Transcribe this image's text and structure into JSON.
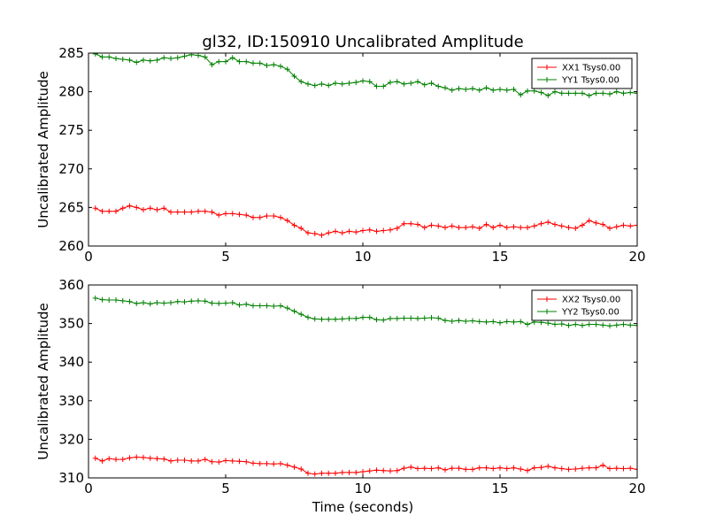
{
  "colors": {
    "red": "#ff0000",
    "green": "#008000",
    "axis": "#000000",
    "background": "#ffffff"
  },
  "chart_data": [
    {
      "type": "line",
      "title": "gl32, ID:150910 Uncalibrated Amplitude",
      "xlabel": "",
      "ylabel": "Uncalibrated Amplitude",
      "xlim": [
        0,
        20
      ],
      "ylim": [
        260,
        285
      ],
      "xticks": [
        0,
        5,
        10,
        15,
        20
      ],
      "yticks": [
        260,
        265,
        270,
        275,
        280,
        285
      ],
      "legend_position": "top-right",
      "series": [
        {
          "name": "XX1 Tsys0.00",
          "color": "#ff0000",
          "x": [
            0.25,
            0.5,
            0.75,
            1.0,
            1.25,
            1.5,
            1.75,
            2.0,
            2.25,
            2.5,
            2.75,
            3.0,
            3.25,
            3.5,
            3.75,
            4.0,
            4.25,
            4.5,
            4.75,
            5.0,
            5.25,
            5.5,
            5.75,
            6.0,
            6.25,
            6.5,
            6.75,
            7.0,
            7.25,
            7.5,
            7.75,
            8.0,
            8.25,
            8.5,
            8.75,
            9.0,
            9.25,
            9.5,
            9.75,
            10.0,
            10.25,
            10.5,
            10.75,
            11.0,
            11.25,
            11.5,
            11.75,
            12.0,
            12.25,
            12.5,
            12.75,
            13.0,
            13.25,
            13.5,
            13.75,
            14.0,
            14.25,
            14.5,
            14.75,
            15.0,
            15.25,
            15.5,
            15.75,
            16.0,
            16.25,
            16.5,
            16.75,
            17.0,
            17.25,
            17.5,
            17.75,
            18.0,
            18.25,
            18.5,
            18.75,
            19.0,
            19.25,
            19.5,
            19.75,
            20.0
          ],
          "y": [
            264.9,
            264.5,
            264.5,
            264.5,
            264.9,
            265.2,
            265.0,
            264.7,
            264.9,
            264.7,
            264.9,
            264.4,
            264.4,
            264.4,
            264.4,
            264.5,
            264.5,
            264.4,
            264.0,
            264.2,
            264.2,
            264.1,
            264.0,
            263.7,
            263.7,
            263.9,
            263.9,
            263.7,
            263.3,
            262.7,
            262.3,
            261.7,
            261.6,
            261.4,
            261.7,
            261.9,
            261.7,
            261.9,
            261.8,
            262.0,
            262.1,
            261.9,
            262.0,
            262.1,
            262.3,
            262.9,
            262.9,
            262.8,
            262.4,
            262.7,
            262.6,
            262.4,
            262.6,
            262.4,
            262.4,
            262.5,
            262.3,
            262.8,
            262.4,
            262.7,
            262.4,
            262.5,
            262.4,
            262.4,
            262.6,
            262.9,
            263.1,
            262.8,
            262.6,
            262.4,
            262.3,
            262.7,
            263.3,
            263.0,
            262.8,
            262.3,
            262.5,
            262.7,
            262.6,
            262.7
          ]
        },
        {
          "name": "YY1 Tsys0.00",
          "color": "#008000",
          "x": [
            0.25,
            0.5,
            0.75,
            1.0,
            1.25,
            1.5,
            1.75,
            2.0,
            2.25,
            2.5,
            2.75,
            3.0,
            3.25,
            3.5,
            3.75,
            4.0,
            4.25,
            4.5,
            4.75,
            5.0,
            5.25,
            5.5,
            5.75,
            6.0,
            6.25,
            6.5,
            6.75,
            7.0,
            7.25,
            7.5,
            7.75,
            8.0,
            8.25,
            8.5,
            8.75,
            9.0,
            9.25,
            9.5,
            9.75,
            10.0,
            10.25,
            10.5,
            10.75,
            11.0,
            11.25,
            11.5,
            11.75,
            12.0,
            12.25,
            12.5,
            12.75,
            13.0,
            13.25,
            13.5,
            13.75,
            14.0,
            14.25,
            14.5,
            14.75,
            15.0,
            15.25,
            15.5,
            15.75,
            16.0,
            16.25,
            16.5,
            16.75,
            17.0,
            17.25,
            17.5,
            17.75,
            18.0,
            18.25,
            18.5,
            18.75,
            19.0,
            19.25,
            19.5,
            19.75,
            20.0
          ],
          "y": [
            284.9,
            284.5,
            284.5,
            284.3,
            284.2,
            284.1,
            283.8,
            284.1,
            284.0,
            284.1,
            284.4,
            284.3,
            284.4,
            284.6,
            284.8,
            284.7,
            284.5,
            283.5,
            283.9,
            283.9,
            284.4,
            283.9,
            283.9,
            283.7,
            283.7,
            283.4,
            283.5,
            283.3,
            282.9,
            282.0,
            281.3,
            281.0,
            280.8,
            281.0,
            280.8,
            281.1,
            281.0,
            281.1,
            281.2,
            281.4,
            281.3,
            280.7,
            280.7,
            281.2,
            281.3,
            281.0,
            281.1,
            281.3,
            280.9,
            281.1,
            280.7,
            280.5,
            280.2,
            280.4,
            280.3,
            280.4,
            280.2,
            280.5,
            280.2,
            280.3,
            280.2,
            280.3,
            279.6,
            280.1,
            280.1,
            279.9,
            279.5,
            280.0,
            279.8,
            279.8,
            279.8,
            279.8,
            279.5,
            279.8,
            279.8,
            279.7,
            280.0,
            279.8,
            279.9,
            279.8
          ]
        }
      ]
    },
    {
      "type": "line",
      "title": "",
      "xlabel": "Time (seconds)",
      "ylabel": "Uncalibrated Amplitude",
      "xlim": [
        0,
        20
      ],
      "ylim": [
        310,
        360
      ],
      "xticks": [
        0,
        5,
        10,
        15,
        20
      ],
      "yticks": [
        310,
        320,
        330,
        340,
        350,
        360
      ],
      "legend_position": "top-right",
      "series": [
        {
          "name": "XX2 Tsys0.00",
          "color": "#ff0000",
          "x": [
            0.25,
            0.5,
            0.75,
            1.0,
            1.25,
            1.5,
            1.75,
            2.0,
            2.25,
            2.5,
            2.75,
            3.0,
            3.25,
            3.5,
            3.75,
            4.0,
            4.25,
            4.5,
            4.75,
            5.0,
            5.25,
            5.5,
            5.75,
            6.0,
            6.25,
            6.5,
            6.75,
            7.0,
            7.25,
            7.5,
            7.75,
            8.0,
            8.25,
            8.5,
            8.75,
            9.0,
            9.25,
            9.5,
            9.75,
            10.0,
            10.25,
            10.5,
            10.75,
            11.0,
            11.25,
            11.5,
            11.75,
            12.0,
            12.25,
            12.5,
            12.75,
            13.0,
            13.25,
            13.5,
            13.75,
            14.0,
            14.25,
            14.5,
            14.75,
            15.0,
            15.25,
            15.5,
            15.75,
            16.0,
            16.25,
            16.5,
            16.75,
            17.0,
            17.25,
            17.5,
            17.75,
            18.0,
            18.25,
            18.5,
            18.75,
            19.0,
            19.25,
            19.5,
            19.75,
            20.0
          ],
          "y": [
            315.1,
            314.4,
            315.0,
            314.8,
            314.8,
            315.2,
            315.4,
            315.3,
            315.1,
            315.0,
            314.9,
            314.4,
            314.6,
            314.6,
            314.4,
            314.4,
            314.8,
            314.2,
            314.1,
            314.5,
            314.4,
            314.3,
            314.2,
            313.8,
            313.7,
            313.7,
            313.6,
            313.7,
            313.3,
            312.8,
            312.3,
            311.2,
            311.0,
            311.2,
            311.2,
            311.2,
            311.4,
            311.4,
            311.4,
            311.6,
            311.8,
            312.0,
            311.9,
            311.8,
            311.9,
            312.5,
            312.8,
            312.4,
            312.5,
            312.4,
            312.6,
            312.1,
            312.5,
            312.5,
            312.2,
            312.2,
            312.6,
            312.6,
            312.4,
            312.6,
            312.4,
            312.6,
            312.3,
            311.9,
            312.6,
            312.7,
            313.0,
            312.6,
            312.4,
            312.2,
            312.3,
            312.5,
            312.6,
            312.6,
            313.3,
            312.4,
            312.5,
            312.4,
            312.5,
            312.2
          ]
        },
        {
          "name": "YY2 Tsys0.00",
          "color": "#008000",
          "x": [
            0.25,
            0.5,
            0.75,
            1.0,
            1.25,
            1.5,
            1.75,
            2.0,
            2.25,
            2.5,
            2.75,
            3.0,
            3.25,
            3.5,
            3.75,
            4.0,
            4.25,
            4.5,
            4.75,
            5.0,
            5.25,
            5.5,
            5.75,
            6.0,
            6.25,
            6.5,
            6.75,
            7.0,
            7.25,
            7.5,
            7.75,
            8.0,
            8.25,
            8.5,
            8.75,
            9.0,
            9.25,
            9.5,
            9.75,
            10.0,
            10.25,
            10.5,
            10.75,
            11.0,
            11.25,
            11.5,
            11.75,
            12.0,
            12.25,
            12.5,
            12.75,
            13.0,
            13.25,
            13.5,
            13.75,
            14.0,
            14.25,
            14.5,
            14.75,
            15.0,
            15.25,
            15.5,
            15.75,
            16.0,
            16.25,
            16.5,
            16.75,
            17.0,
            17.25,
            17.5,
            17.75,
            18.0,
            18.25,
            18.5,
            18.75,
            19.0,
            19.25,
            19.5,
            19.75,
            20.0
          ],
          "y": [
            356.6,
            356.2,
            356.1,
            356.1,
            355.9,
            355.7,
            355.2,
            355.4,
            355.1,
            355.4,
            355.3,
            355.4,
            355.7,
            355.6,
            355.8,
            355.9,
            355.8,
            355.3,
            355.2,
            355.3,
            355.4,
            354.8,
            355.0,
            354.6,
            354.6,
            354.6,
            354.5,
            354.6,
            354.0,
            353.2,
            352.4,
            351.6,
            351.2,
            351.1,
            351.1,
            351.1,
            351.2,
            351.3,
            351.3,
            351.6,
            351.6,
            351.0,
            350.9,
            351.3,
            351.3,
            351.4,
            351.4,
            351.3,
            351.4,
            351.5,
            351.4,
            350.8,
            350.6,
            350.8,
            350.6,
            350.7,
            350.5,
            350.4,
            350.5,
            350.2,
            350.5,
            350.4,
            350.5,
            349.8,
            350.4,
            350.3,
            350.1,
            349.8,
            349.9,
            349.5,
            349.8,
            349.5,
            349.8,
            349.8,
            349.6,
            349.4,
            349.6,
            349.8,
            349.6,
            349.5
          ]
        }
      ]
    }
  ]
}
